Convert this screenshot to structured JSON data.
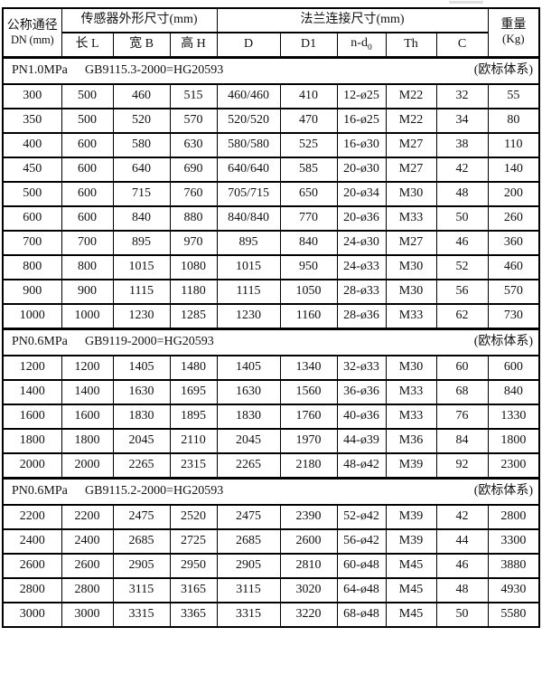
{
  "table": {
    "header": {
      "dn_line1": "公称通径",
      "dn_line2": "DN (mm)",
      "group_sensor": "传感器外形尺寸(mm)",
      "group_flange": "法兰连接尺寸(mm)",
      "weight_line1": "重量",
      "weight_line2": "(Kg)",
      "sub_cols": {
        "chang": "长 L",
        "kuan": "宽 B",
        "gao": "高 H",
        "d": "D",
        "d1": "D1",
        "nd_prefix": "n-d",
        "nd_sub": "0",
        "th": "Th",
        "c": "C"
      }
    },
    "column_keys": [
      "dn",
      "length-l",
      "width-b",
      "height-h",
      "d",
      "d1",
      "n-d0",
      "th",
      "c",
      "weight-kg"
    ],
    "sections": [
      {
        "pressure": "PN1.0MPa",
        "standard": "GB9115.3-2000=HG20593",
        "system": "(欧标体系)",
        "rows": [
          [
            "300",
            "500",
            "460",
            "515",
            "460/460",
            "410",
            "12-ø25",
            "M22",
            "32",
            "55"
          ],
          [
            "350",
            "500",
            "520",
            "570",
            "520/520",
            "470",
            "16-ø25",
            "M22",
            "34",
            "80"
          ],
          [
            "400",
            "600",
            "580",
            "630",
            "580/580",
            "525",
            "16-ø30",
            "M27",
            "38",
            "110"
          ],
          [
            "450",
            "600",
            "640",
            "690",
            "640/640",
            "585",
            "20-ø30",
            "M27",
            "42",
            "140"
          ],
          [
            "500",
            "600",
            "715",
            "760",
            "705/715",
            "650",
            "20-ø34",
            "M30",
            "48",
            "200"
          ],
          [
            "600",
            "600",
            "840",
            "880",
            "840/840",
            "770",
            "20-ø36",
            "M33",
            "50",
            "260"
          ],
          [
            "700",
            "700",
            "895",
            "970",
            "895",
            "840",
            "24-ø30",
            "M27",
            "46",
            "360"
          ],
          [
            "800",
            "800",
            "1015",
            "1080",
            "1015",
            "950",
            "24-ø33",
            "M30",
            "52",
            "460"
          ],
          [
            "900",
            "900",
            "1115",
            "1180",
            "1115",
            "1050",
            "28-ø33",
            "M30",
            "56",
            "570"
          ],
          [
            "1000",
            "1000",
            "1230",
            "1285",
            "1230",
            "1160",
            "28-ø36",
            "M33",
            "62",
            "730"
          ]
        ]
      },
      {
        "pressure": "PN0.6MPa",
        "standard": "GB9119-2000=HG20593",
        "system": "(欧标体系)",
        "rows": [
          [
            "1200",
            "1200",
            "1405",
            "1480",
            "1405",
            "1340",
            "32-ø33",
            "M30",
            "60",
            "600"
          ],
          [
            "1400",
            "1400",
            "1630",
            "1695",
            "1630",
            "1560",
            "36-ø36",
            "M33",
            "68",
            "840"
          ],
          [
            "1600",
            "1600",
            "1830",
            "1895",
            "1830",
            "1760",
            "40-ø36",
            "M33",
            "76",
            "1330"
          ],
          [
            "1800",
            "1800",
            "2045",
            "2110",
            "2045",
            "1970",
            "44-ø39",
            "M36",
            "84",
            "1800"
          ],
          [
            "2000",
            "2000",
            "2265",
            "2315",
            "2265",
            "2180",
            "48-ø42",
            "M39",
            "92",
            "2300"
          ]
        ]
      },
      {
        "pressure": "PN0.6MPa",
        "standard": "GB9115.2-2000=HG20593",
        "system": "(欧标体系)",
        "rows": [
          [
            "2200",
            "2200",
            "2475",
            "2520",
            "2475",
            "2390",
            "52-ø42",
            "M39",
            "42",
            "2800"
          ],
          [
            "2400",
            "2400",
            "2685",
            "2725",
            "2685",
            "2600",
            "56-ø42",
            "M39",
            "44",
            "3300"
          ],
          [
            "2600",
            "2600",
            "2905",
            "2950",
            "2905",
            "2810",
            "60-ø48",
            "M45",
            "46",
            "3880"
          ],
          [
            "2800",
            "2800",
            "3115",
            "3165",
            "3115",
            "3020",
            "64-ø48",
            "M45",
            "48",
            "4930"
          ],
          [
            "3000",
            "3000",
            "3315",
            "3365",
            "3315",
            "3220",
            "68-ø48",
            "M45",
            "50",
            "5580"
          ]
        ]
      }
    ]
  }
}
